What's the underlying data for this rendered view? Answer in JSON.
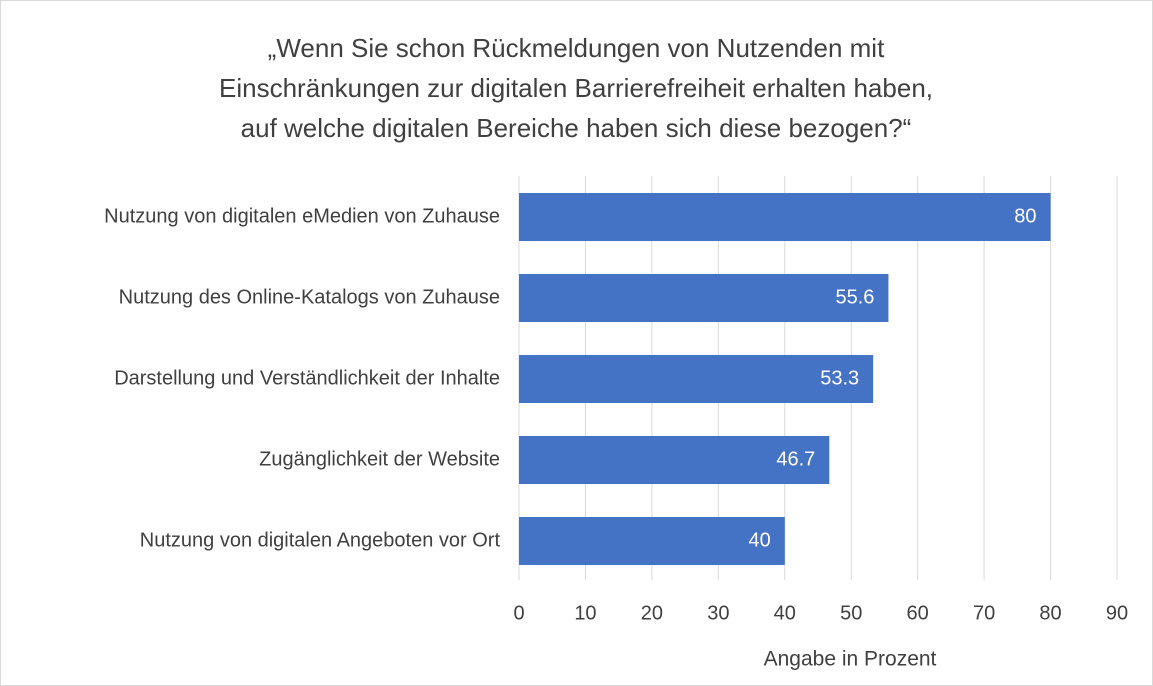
{
  "chart_data": {
    "type": "barh",
    "title": [
      "„Wenn Sie schon Rückmeldungen von Nutzenden mit",
      "Einschränkungen zur digitalen Barrierefreiheit erhalten haben,",
      "auf welche digitalen Bereiche haben sich diese bezogen?“"
    ],
    "categories": [
      "Nutzung von digitalen eMedien von Zuhause",
      "Nutzung des Online-Katalogs von Zuhause",
      "Darstellung und Verständlichkeit der Inhalte",
      "Zugänglichkeit der Website",
      "Nutzung von digitalen Angeboten vor Ort"
    ],
    "values": [
      80,
      55.6,
      53.3,
      46.7,
      40
    ],
    "color": "#4472c4",
    "x_label": "Angabe in Prozent",
    "xlim": [
      0,
      90
    ],
    "xticks": [
      0,
      10,
      20,
      30,
      40,
      50,
      60,
      70,
      80,
      90
    ],
    "grid": true
  }
}
